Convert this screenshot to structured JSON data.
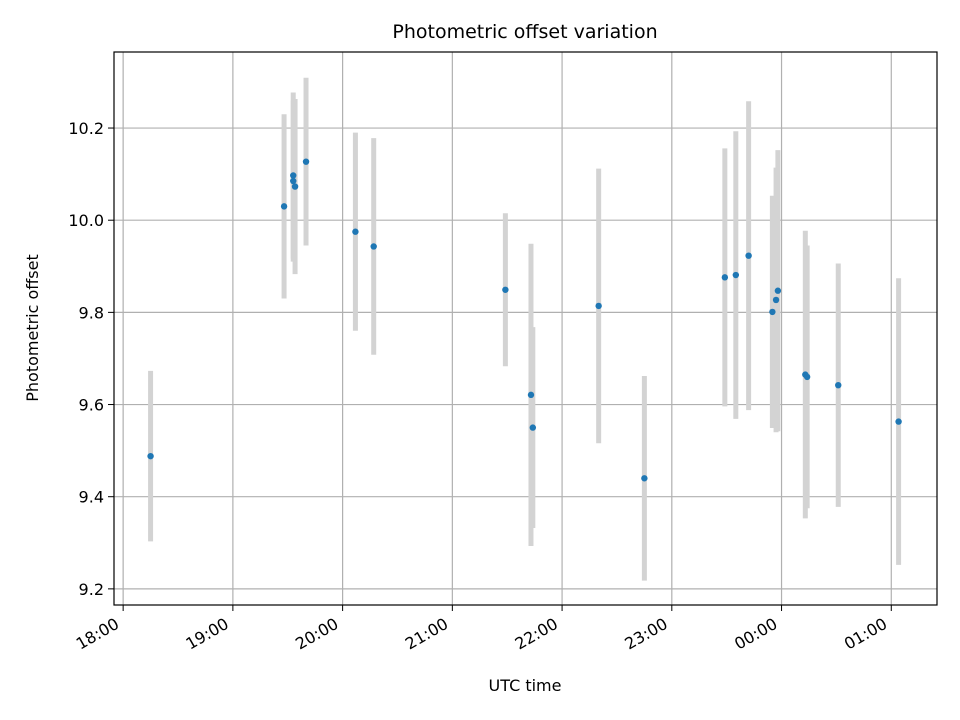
{
  "chart_data": {
    "type": "scatter",
    "title": "Photometric offset variation",
    "xlabel": "UTC time",
    "ylabel": "Photometric offset",
    "x_axis_type": "time",
    "x_range": [
      "17:55",
      "01:25"
    ],
    "ylim": [
      9.165,
      10.365
    ],
    "x_ticks": [
      "18:00",
      "19:00",
      "20:00",
      "21:00",
      "22:00",
      "23:00",
      "00:00",
      "01:00"
    ],
    "y_ticks": [
      9.2,
      9.4,
      9.6,
      9.8,
      10.0,
      10.2
    ],
    "grid": true,
    "point_color": "#1f77b4",
    "errorbar_color": "#d3d3d3",
    "points": [
      {
        "x": "18:15",
        "y": 9.488,
        "err": 0.185
      },
      {
        "x": "19:28",
        "y": 10.03,
        "err": 0.2
      },
      {
        "x": "19:33",
        "y": 10.097,
        "err": 0.18
      },
      {
        "x": "19:33",
        "y": 10.085,
        "err": 0.175
      },
      {
        "x": "19:34",
        "y": 10.073,
        "err": 0.19
      },
      {
        "x": "19:40",
        "y": 10.127,
        "err": 0.182
      },
      {
        "x": "20:07",
        "y": 9.975,
        "err": 0.215
      },
      {
        "x": "20:17",
        "y": 9.943,
        "err": 0.235
      },
      {
        "x": "21:29",
        "y": 9.849,
        "err": 0.166
      },
      {
        "x": "21:43",
        "y": 9.621,
        "err": 0.328
      },
      {
        "x": "21:44",
        "y": 9.55,
        "err": 0.218
      },
      {
        "x": "22:20",
        "y": 9.814,
        "err": 0.298
      },
      {
        "x": "22:45",
        "y": 9.44,
        "err": 0.222
      },
      {
        "x": "23:29",
        "y": 9.876,
        "err": 0.28
      },
      {
        "x": "23:35",
        "y": 9.881,
        "err": 0.312
      },
      {
        "x": "23:42",
        "y": 9.923,
        "err": 0.335
      },
      {
        "x": "23:55",
        "y": 9.801,
        "err": 0.252
      },
      {
        "x": "23:57",
        "y": 9.827,
        "err": 0.287
      },
      {
        "x": "23:58",
        "y": 9.847,
        "err": 0.305
      },
      {
        "x": "00:13",
        "y": 9.665,
        "err": 0.312
      },
      {
        "x": "00:14",
        "y": 9.66,
        "err": 0.285
      },
      {
        "x": "00:31",
        "y": 9.642,
        "err": 0.264
      },
      {
        "x": "01:04",
        "y": 9.563,
        "err": 0.311
      }
    ]
  }
}
